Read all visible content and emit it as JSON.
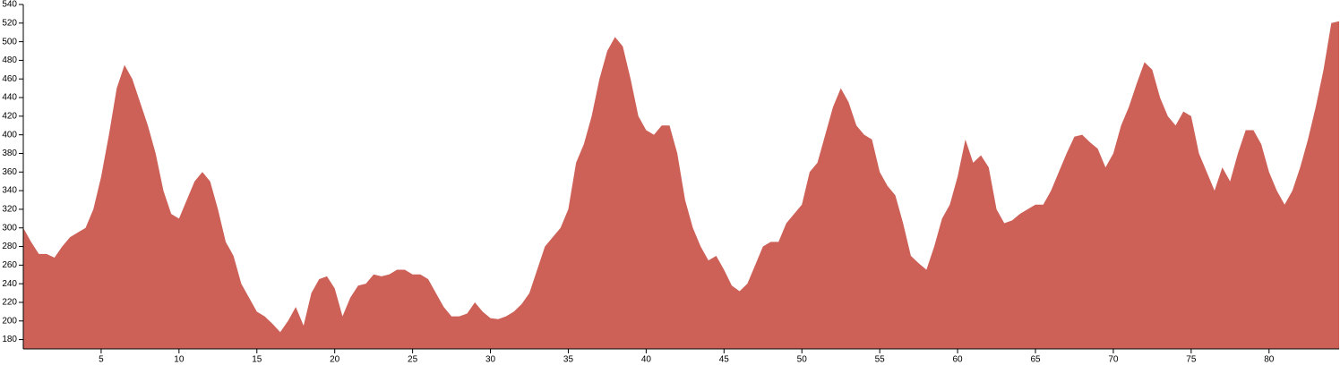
{
  "chart_data": {
    "type": "area",
    "color": "#cd6158",
    "x": [
      0,
      0.5,
      1,
      1.5,
      2,
      2.5,
      3,
      3.5,
      4,
      4.5,
      5,
      5.5,
      6,
      6.5,
      7,
      7.5,
      8,
      8.5,
      9,
      9.5,
      10,
      10.5,
      11,
      11.5,
      12,
      12.5,
      13,
      13.5,
      14,
      14.5,
      15,
      15.5,
      16,
      16.5,
      17,
      17.5,
      18,
      18.5,
      19,
      19.5,
      20,
      20.5,
      21,
      21.5,
      22,
      22.5,
      23,
      23.5,
      24,
      24.5,
      25,
      25.5,
      26,
      26.5,
      27,
      27.5,
      28,
      28.5,
      29,
      29.5,
      30,
      30.5,
      31,
      31.5,
      32,
      32.5,
      33,
      33.5,
      34,
      34.5,
      35,
      35.5,
      36,
      36.5,
      37,
      37.5,
      38,
      38.5,
      39,
      39.5,
      40,
      40.5,
      41,
      41.5,
      42,
      42.5,
      43,
      43.5,
      44,
      44.5,
      45,
      45.5,
      46,
      46.5,
      47,
      47.5,
      48,
      48.5,
      49,
      49.5,
      50,
      50.5,
      51,
      51.5,
      52,
      52.5,
      53,
      53.5,
      54,
      54.5,
      55,
      55.5,
      56,
      56.5,
      57,
      57.5,
      58,
      58.5,
      59,
      59.5,
      60,
      60.5,
      61,
      61.5,
      62,
      62.5,
      63,
      63.5,
      64,
      64.5,
      65,
      65.5,
      66,
      66.5,
      67,
      67.5,
      68,
      68.5,
      69,
      69.5,
      70,
      70.5,
      71,
      71.5,
      72,
      72.5,
      73,
      73.5,
      74,
      74.5,
      75,
      75.5,
      76,
      76.5,
      77,
      77.5,
      78,
      78.5,
      79,
      79.5,
      80,
      80.5,
      81,
      81.5,
      82,
      82.5,
      83,
      83.5,
      84,
      84.5
    ],
    "values": [
      300,
      285,
      272,
      272,
      268,
      280,
      290,
      295,
      300,
      320,
      355,
      400,
      450,
      475,
      460,
      435,
      410,
      380,
      340,
      315,
      310,
      330,
      350,
      360,
      350,
      320,
      285,
      270,
      240,
      225,
      210,
      205,
      197,
      188,
      200,
      215,
      195,
      230,
      245,
      248,
      235,
      205,
      225,
      238,
      240,
      250,
      248,
      250,
      255,
      255,
      250,
      250,
      245,
      230,
      215,
      205,
      205,
      208,
      220,
      210,
      203,
      202,
      205,
      210,
      218,
      230,
      255,
      280,
      290,
      300,
      320,
      370,
      390,
      420,
      460,
      490,
      505,
      495,
      460,
      420,
      405,
      400,
      410,
      410,
      380,
      330,
      300,
      280,
      265,
      270,
      255,
      238,
      232,
      240,
      260,
      280,
      285,
      285,
      305,
      315,
      325,
      360,
      370,
      400,
      430,
      450,
      435,
      410,
      400,
      395,
      360,
      345,
      335,
      305,
      270,
      262,
      255,
      280,
      310,
      325,
      355,
      395,
      370,
      378,
      365,
      320,
      305,
      308,
      315,
      320,
      325,
      325,
      340,
      360,
      380,
      398,
      400,
      392,
      385,
      365,
      380,
      410,
      430,
      455,
      478,
      470,
      440,
      420,
      410,
      425,
      420,
      380,
      360,
      340,
      365,
      350,
      380,
      405,
      405,
      390,
      360,
      340,
      325,
      340,
      365,
      395,
      430,
      470,
      520,
      522
    ],
    "xlim": [
      0,
      84.5
    ],
    "ylim": [
      170,
      540
    ],
    "xticks": [
      5,
      10,
      15,
      20,
      25,
      30,
      35,
      40,
      45,
      50,
      55,
      60,
      65,
      70,
      75,
      80
    ],
    "yticks": [
      180,
      200,
      220,
      240,
      260,
      280,
      300,
      320,
      340,
      360,
      380,
      400,
      420,
      440,
      460,
      480,
      500,
      520,
      540
    ]
  }
}
